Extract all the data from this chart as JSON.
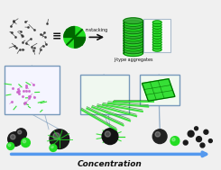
{
  "bg_color": "#f0f0f0",
  "white": "#ffffff",
  "green_bright": "#22dd22",
  "green_dark": "#006600",
  "green_mid": "#33aa33",
  "black": "#111111",
  "gray_dark": "#333333",
  "gray_med": "#666666",
  "blue_arrow": "#5599ee",
  "purple": "#cc66cc",
  "title": "Concentration",
  "pi_label": "π-stacking",
  "j_label": "J-type aggregates",
  "figsize": [
    2.45,
    1.89
  ],
  "dpi": 100
}
